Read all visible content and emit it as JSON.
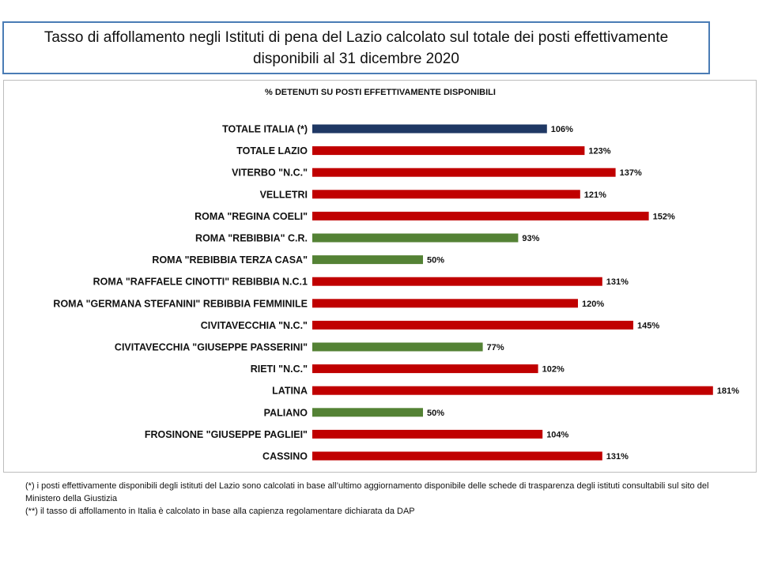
{
  "header": {
    "title": "Tasso di affollamento negli Istituti di pena del Lazio calcolato sul totale dei posti effettivamente disponibili al 31 dicembre 2020"
  },
  "chart_data": {
    "type": "bar",
    "orientation": "horizontal",
    "title": "% DETENUTI SU POSTI EFFETTIVAMENTE DISPONIBILI",
    "categories": [
      "TOTALE ITALIA (*)",
      "TOTALE LAZIO",
      "VITERBO \"N.C.\"",
      "VELLETRI",
      "ROMA \"REGINA COELI\"",
      "ROMA \"REBIBBIA\" C.R.",
      "ROMA \"REBIBBIA TERZA CASA\"",
      "ROMA \"RAFFAELE CINOTTI\" REBIBBIA N.C.1",
      "ROMA \"GERMANA STEFANINI\" REBIBBIA FEMMINILE",
      "CIVITAVECCHIA \"N.C.\"",
      "CIVITAVECCHIA \"GIUSEPPE PASSERINI\"",
      "RIETI \"N.C.\"",
      "LATINA",
      "PALIANO",
      "FROSINONE \"GIUSEPPE PAGLIEI\"",
      "CASSINO"
    ],
    "values": [
      106,
      123,
      137,
      121,
      152,
      93,
      50,
      131,
      120,
      145,
      77,
      102,
      181,
      50,
      104,
      131
    ],
    "value_labels": [
      "106%",
      "123%",
      "137%",
      "121%",
      "152%",
      "93%",
      "50%",
      "131%",
      "120%",
      "145%",
      "77%",
      "102%",
      "181%",
      "50%",
      "104%",
      "131%"
    ],
    "bar_colors": [
      "#1f3864",
      "#c00000",
      "#c00000",
      "#c00000",
      "#c00000",
      "#548235",
      "#548235",
      "#c00000",
      "#c00000",
      "#c00000",
      "#548235",
      "#c00000",
      "#c00000",
      "#548235",
      "#c00000",
      "#c00000"
    ],
    "xlim": [
      0,
      181
    ],
    "grid": false,
    "legend": "none"
  },
  "notes": [
    "(*) i posti effettivamente disponibili  degli istituti del Lazio sono  calcolati in base all’ultimo aggiornamento disponibile  delle schede  di trasparenza degli istituti consultabili  sul sito del Ministero della Giustizia",
    "(**) il tasso di affollamento  in Italia è calcolato in base alla capienza regolamentare dichiarata da DAP"
  ]
}
